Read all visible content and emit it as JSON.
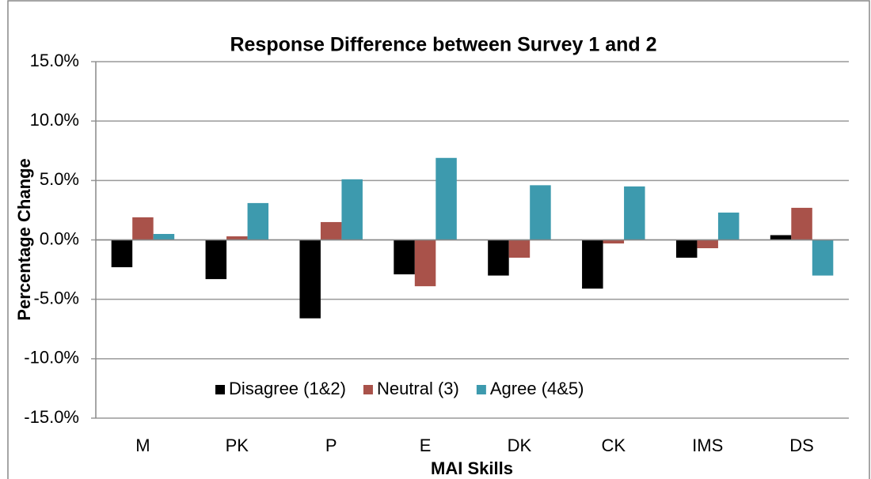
{
  "chart_data": {
    "type": "bar",
    "title": "Response Difference between Survey 1 and 2",
    "x_label": "MAI Skills",
    "y_label": "Percentage Change",
    "categories": [
      "M",
      "PK",
      "P",
      "E",
      "DK",
      "CK",
      "IMS",
      "DS"
    ],
    "series": [
      {
        "name": "Disagree (1&2)",
        "color": "#000000",
        "values": [
          -2.3,
          -3.3,
          -6.6,
          -2.9,
          -3.0,
          -4.1,
          -1.5,
          0.4
        ]
      },
      {
        "name": "Neutral (3)",
        "color": "#a9524a",
        "values": [
          1.9,
          0.3,
          1.5,
          -3.9,
          -1.5,
          -0.3,
          -0.7,
          2.7
        ]
      },
      {
        "name": "Agree (4&5)",
        "color": "#3d9aae",
        "values": [
          0.5,
          3.1,
          5.1,
          6.9,
          4.6,
          4.5,
          2.3,
          -3.0
        ]
      }
    ],
    "ylim": [
      -15,
      15
    ],
    "yticks": [
      {
        "value": -15,
        "label": "-15.0%"
      },
      {
        "value": -10,
        "label": "-10.0%"
      },
      {
        "value": -5,
        "label": "-5.0%"
      },
      {
        "value": 0,
        "label": "0.0%"
      },
      {
        "value": 5,
        "label": "5.0%"
      },
      {
        "value": 10,
        "label": "10.0%"
      },
      {
        "value": 15,
        "label": "15.0%"
      }
    ],
    "grid": true,
    "legend": "bottom"
  }
}
